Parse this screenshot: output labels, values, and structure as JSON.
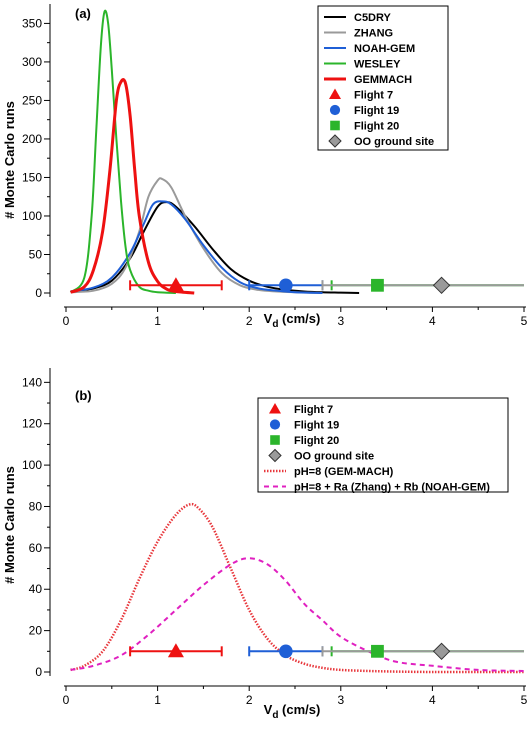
{
  "chart_data": [
    {
      "panel": "(a)",
      "type": "line",
      "xlabel_main": "V",
      "xlabel_sub": "d",
      "xlabel_unit": " (cm/s)",
      "ylabel": "# Monte Carlo runs",
      "xlim": [
        0,
        5
      ],
      "ylim": [
        0,
        370
      ],
      "xticks": [
        "0",
        "1",
        "2",
        "3",
        "4",
        "5"
      ],
      "yticks": [
        "0",
        "50",
        "100",
        "150",
        "200",
        "250",
        "300",
        "350"
      ],
      "series": [
        {
          "name": "C5DRY",
          "color": "#000000",
          "style": "solid",
          "width": 2,
          "x": [
            0.05,
            0.3,
            0.5,
            0.7,
            0.85,
            1.0,
            1.1,
            1.2,
            1.4,
            1.6,
            1.8,
            2.0,
            2.2,
            2.4,
            2.6,
            2.8,
            3.0,
            3.2
          ],
          "y": [
            2,
            6,
            16,
            45,
            80,
            112,
            118,
            112,
            87,
            57,
            31,
            16,
            8,
            4,
            2,
            1,
            0.5,
            0
          ]
        },
        {
          "name": "ZHANG",
          "color": "#9a9a9a",
          "style": "solid",
          "width": 2,
          "x": [
            0.05,
            0.3,
            0.5,
            0.65,
            0.8,
            0.9,
            1.0,
            1.05,
            1.15,
            1.3,
            1.5,
            1.7,
            1.9,
            2.1,
            2.3,
            2.5,
            2.8
          ],
          "y": [
            1,
            3,
            12,
            33,
            80,
            125,
            146,
            148,
            137,
            100,
            58,
            26,
            10,
            4,
            2,
            1,
            0
          ]
        },
        {
          "name": "NOAH-GEM",
          "color": "#1f5fd6",
          "style": "solid",
          "width": 2,
          "x": [
            0.05,
            0.3,
            0.5,
            0.7,
            0.85,
            0.95,
            1.05,
            1.15,
            1.3,
            1.5,
            1.7,
            1.9,
            2.1,
            2.3,
            2.5,
            2.8
          ],
          "y": [
            2,
            7,
            20,
            52,
            90,
            115,
            119,
            115,
            96,
            62,
            33,
            14,
            6,
            3,
            1,
            0
          ]
        },
        {
          "name": "WESLEY",
          "color": "#2bb52b",
          "style": "solid",
          "width": 2,
          "x": [
            0.05,
            0.2,
            0.28,
            0.33,
            0.38,
            0.42,
            0.46,
            0.5,
            0.55,
            0.6,
            0.65,
            0.7,
            0.8,
            0.9,
            1.0,
            1.2
          ],
          "y": [
            1,
            20,
            100,
            210,
            320,
            365,
            350,
            290,
            200,
            120,
            60,
            30,
            8,
            3,
            1,
            0
          ]
        },
        {
          "name": "GEMMACH",
          "color": "#ee1111",
          "style": "solid",
          "width": 3,
          "x": [
            0.05,
            0.2,
            0.3,
            0.4,
            0.48,
            0.55,
            0.6,
            0.65,
            0.7,
            0.75,
            0.8,
            0.9,
            1.0,
            1.1,
            1.2,
            1.4
          ],
          "y": [
            1,
            8,
            30,
            80,
            160,
            250,
            274,
            272,
            230,
            160,
            100,
            40,
            15,
            5,
            2,
            0
          ]
        }
      ],
      "observations": [
        {
          "name": "Flight 7",
          "marker": "triangle",
          "color": "#ee1111",
          "x": 1.2,
          "y": 10,
          "xerr_low": 0.7,
          "xerr_high": 1.7
        },
        {
          "name": "Flight 19",
          "marker": "circle",
          "color": "#1f5fd6",
          "x": 2.4,
          "y": 10,
          "xerr_low": 2.0,
          "xerr_high": 2.8
        },
        {
          "name": "Flight 20",
          "marker": "square",
          "color": "#2bb52b",
          "x": 3.4,
          "y": 10,
          "xerr_low": 2.9,
          "xerr_high": 5.0
        },
        {
          "name": "OO ground site",
          "marker": "diamond",
          "color": "#9a9a9a",
          "x": 4.1,
          "y": 10,
          "xerr_low": 2.8,
          "xerr_high": 5.0
        }
      ],
      "legend_position": "top-right"
    },
    {
      "panel": "(b)",
      "type": "line",
      "xlabel_main": "V",
      "xlabel_sub": "d",
      "xlabel_unit": " (cm/s)",
      "ylabel": "# Monte Carlo runs",
      "xlim": [
        0,
        5
      ],
      "ylim": [
        0,
        145
      ],
      "xticks": [
        "0",
        "1",
        "2",
        "3",
        "4",
        "5"
      ],
      "yticks": [
        "0",
        "20",
        "40",
        "60",
        "80",
        "100",
        "120",
        "140"
      ],
      "observations": [
        {
          "name": "Flight 7",
          "marker": "triangle",
          "color": "#ee1111",
          "x": 1.2,
          "y": 10,
          "xerr_low": 0.7,
          "xerr_high": 1.7
        },
        {
          "name": "Flight 19",
          "marker": "circle",
          "color": "#1f5fd6",
          "x": 2.4,
          "y": 10,
          "xerr_low": 2.0,
          "xerr_high": 2.8
        },
        {
          "name": "Flight 20",
          "marker": "square",
          "color": "#2bb52b",
          "x": 3.4,
          "y": 10,
          "xerr_low": 2.9,
          "xerr_high": 5.0
        },
        {
          "name": "OO ground site",
          "marker": "diamond",
          "color": "#9a9a9a",
          "x": 4.1,
          "y": 10,
          "xerr_low": 2.8,
          "xerr_high": 5.0
        }
      ],
      "series": [
        {
          "name": "pH=8 (GEM-MACH)",
          "color": "#e8383d",
          "style": "dotted",
          "width": 2.5,
          "x": [
            0.05,
            0.2,
            0.4,
            0.6,
            0.8,
            1.0,
            1.2,
            1.35,
            1.45,
            1.6,
            1.8,
            2.0,
            2.2,
            2.4,
            2.6,
            2.8,
            3.0,
            3.3,
            3.6,
            4.0,
            4.5,
            5.0
          ],
          "y": [
            1,
            3,
            10,
            25,
            45,
            63,
            76,
            81,
            79,
            70,
            50,
            30,
            16,
            8,
            4,
            2,
            1,
            0.5,
            0.2,
            0,
            0,
            0
          ]
        },
        {
          "name": "pH=8 + Ra (Zhang) + Rb (NOAH-GEM)",
          "color": "#e020c0",
          "style": "dashed",
          "width": 2,
          "x": [
            0.05,
            0.3,
            0.6,
            0.9,
            1.2,
            1.5,
            1.8,
            2.0,
            2.2,
            2.4,
            2.6,
            2.8,
            3.0,
            3.3,
            3.6,
            4.0,
            4.5,
            5.0
          ],
          "y": [
            1,
            3,
            8,
            18,
            30,
            42,
            52,
            55,
            52,
            44,
            33,
            25,
            17,
            10,
            5,
            3,
            1,
            0.5
          ]
        }
      ],
      "legend_position": "top-right"
    }
  ]
}
